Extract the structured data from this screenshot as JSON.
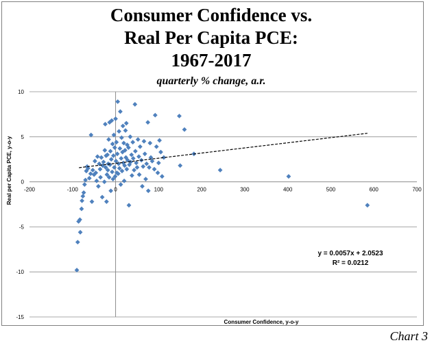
{
  "chart_data": {
    "type": "scatter",
    "title_lines": [
      "Consumer Confidence vs.",
      "Real Per Capita PCE:",
      "1967-2017"
    ],
    "subtitle": "quarterly % change, a.r.",
    "xlabel": "Consumer Confidence, y-o-y",
    "ylabel": "Real per Capita PCE, y-o-y",
    "caption": "Chart 3",
    "xlim": [
      -200,
      700
    ],
    "ylim": [
      -15,
      10
    ],
    "x_ticks": [
      "-200",
      "-100",
      "0",
      "100",
      "200",
      "300",
      "400",
      "500",
      "600",
      "700"
    ],
    "y_ticks": [
      "10",
      "5",
      "0",
      "-5",
      "-10",
      "-15"
    ],
    "grid": "horizontal",
    "marker_color": "#4f81bd",
    "trendline": {
      "slope": 0.0057,
      "intercept": 2.0523,
      "x_range": [
        -85,
        585
      ],
      "style": "dashed",
      "equation": "y = 0.0057x + 2.0523",
      "r_squared": "R² = 0.0212"
    },
    "points": [
      [
        -90,
        -9.8
      ],
      [
        -88,
        -6.7
      ],
      [
        -86,
        -4.4
      ],
      [
        -83,
        -4.2
      ],
      [
        -82,
        -5.6
      ],
      [
        -78,
        -2.1
      ],
      [
        -79,
        -3.0
      ],
      [
        -76,
        -1.6
      ],
      [
        -74,
        -1.2
      ],
      [
        -72,
        -0.3
      ],
      [
        -70,
        0.2
      ],
      [
        -68,
        1.2
      ],
      [
        -66,
        1.7
      ],
      [
        -64,
        1.5
      ],
      [
        -61,
        0.4
      ],
      [
        -58,
        0.9
      ],
      [
        -57,
        5.2
      ],
      [
        -55,
        -2.2
      ],
      [
        -53,
        1.3
      ],
      [
        -50,
        0.8
      ],
      [
        -48,
        2.3
      ],
      [
        -46,
        1.0
      ],
      [
        -44,
        0.1
      ],
      [
        -42,
        2.8
      ],
      [
        -40,
        -0.5
      ],
      [
        -38,
        2.0
      ],
      [
        -36,
        1.4
      ],
      [
        -35,
        0.5
      ],
      [
        -33,
        2.7
      ],
      [
        -31,
        -1.7
      ],
      [
        -30,
        1.8
      ],
      [
        -28,
        2.2
      ],
      [
        -26,
        0.0
      ],
      [
        -25,
        3.5
      ],
      [
        -24,
        6.4
      ],
      [
        -23,
        1.6
      ],
      [
        -22,
        2.9
      ],
      [
        -21,
        -2.2
      ],
      [
        -20,
        0.8
      ],
      [
        -19,
        3.0
      ],
      [
        -18,
        1.3
      ],
      [
        -17,
        2.0
      ],
      [
        -16,
        4.7
      ],
      [
        -15,
        0.5
      ],
      [
        -14,
        6.6
      ],
      [
        -13,
        1.9
      ],
      [
        -12,
        3.4
      ],
      [
        -11,
        -1.0
      ],
      [
        -10,
        2.5
      ],
      [
        -9,
        6.8
      ],
      [
        -8,
        1.1
      ],
      [
        -7,
        4.2
      ],
      [
        -6,
        0.3
      ],
      [
        -5,
        2.9
      ],
      [
        -4,
        5.2
      ],
      [
        -3,
        1.6
      ],
      [
        -2,
        3.8
      ],
      [
        -1,
        0.6
      ],
      [
        0,
        7.0
      ],
      [
        1,
        2.3
      ],
      [
        2,
        4.4
      ],
      [
        3,
        1.0
      ],
      [
        4,
        3.1
      ],
      [
        5,
        8.9
      ],
      [
        6,
        0.9
      ],
      [
        7,
        2.0
      ],
      [
        8,
        5.6
      ],
      [
        9,
        1.5
      ],
      [
        10,
        3.7
      ],
      [
        11,
        7.8
      ],
      [
        12,
        -0.3
      ],
      [
        13,
        2.6
      ],
      [
        14,
        4.9
      ],
      [
        15,
        1.2
      ],
      [
        16,
        3.3
      ],
      [
        17,
        6.2
      ],
      [
        18,
        2.1
      ],
      [
        19,
        4.3
      ],
      [
        20,
        0.1
      ],
      [
        21,
        1.8
      ],
      [
        22,
        3.5
      ],
      [
        23,
        5.7
      ],
      [
        24,
        2.7
      ],
      [
        25,
        6.5
      ],
      [
        26,
        1.4
      ],
      [
        27,
        4.1
      ],
      [
        28,
        2.4
      ],
      [
        30,
        3.8
      ],
      [
        31,
        -2.6
      ],
      [
        32,
        1.9
      ],
      [
        34,
        5.0
      ],
      [
        35,
        2.2
      ],
      [
        37,
        3.0
      ],
      [
        38,
        0.7
      ],
      [
        40,
        4.4
      ],
      [
        41,
        2.6
      ],
      [
        43,
        1.3
      ],
      [
        45,
        8.6
      ],
      [
        46,
        3.4
      ],
      [
        48,
        2.1
      ],
      [
        50,
        1.6
      ],
      [
        52,
        4.7
      ],
      [
        54,
        2.8
      ],
      [
        55,
        0.8
      ],
      [
        57,
        3.9
      ],
      [
        60,
        2.4
      ],
      [
        62,
        -0.5
      ],
      [
        64,
        1.7
      ],
      [
        66,
        4.5
      ],
      [
        68,
        3.1
      ],
      [
        70,
        0.3
      ],
      [
        72,
        2.0
      ],
      [
        75,
        6.6
      ],
      [
        76,
        -1.0
      ],
      [
        78,
        1.6
      ],
      [
        80,
        4.3
      ],
      [
        82,
        2.7
      ],
      [
        85,
        2.3
      ],
      [
        90,
        1.4
      ],
      [
        92,
        7.4
      ],
      [
        95,
        3.9
      ],
      [
        98,
        1.0
      ],
      [
        100,
        2.1
      ],
      [
        102,
        4.6
      ],
      [
        105,
        3.3
      ],
      [
        108,
        0.6
      ],
      [
        112,
        2.7
      ],
      [
        148,
        7.3
      ],
      [
        150,
        1.8
      ],
      [
        160,
        5.8
      ],
      [
        182,
        3.1
      ],
      [
        243,
        1.3
      ],
      [
        402,
        0.6
      ],
      [
        585,
        -2.6
      ]
    ]
  }
}
